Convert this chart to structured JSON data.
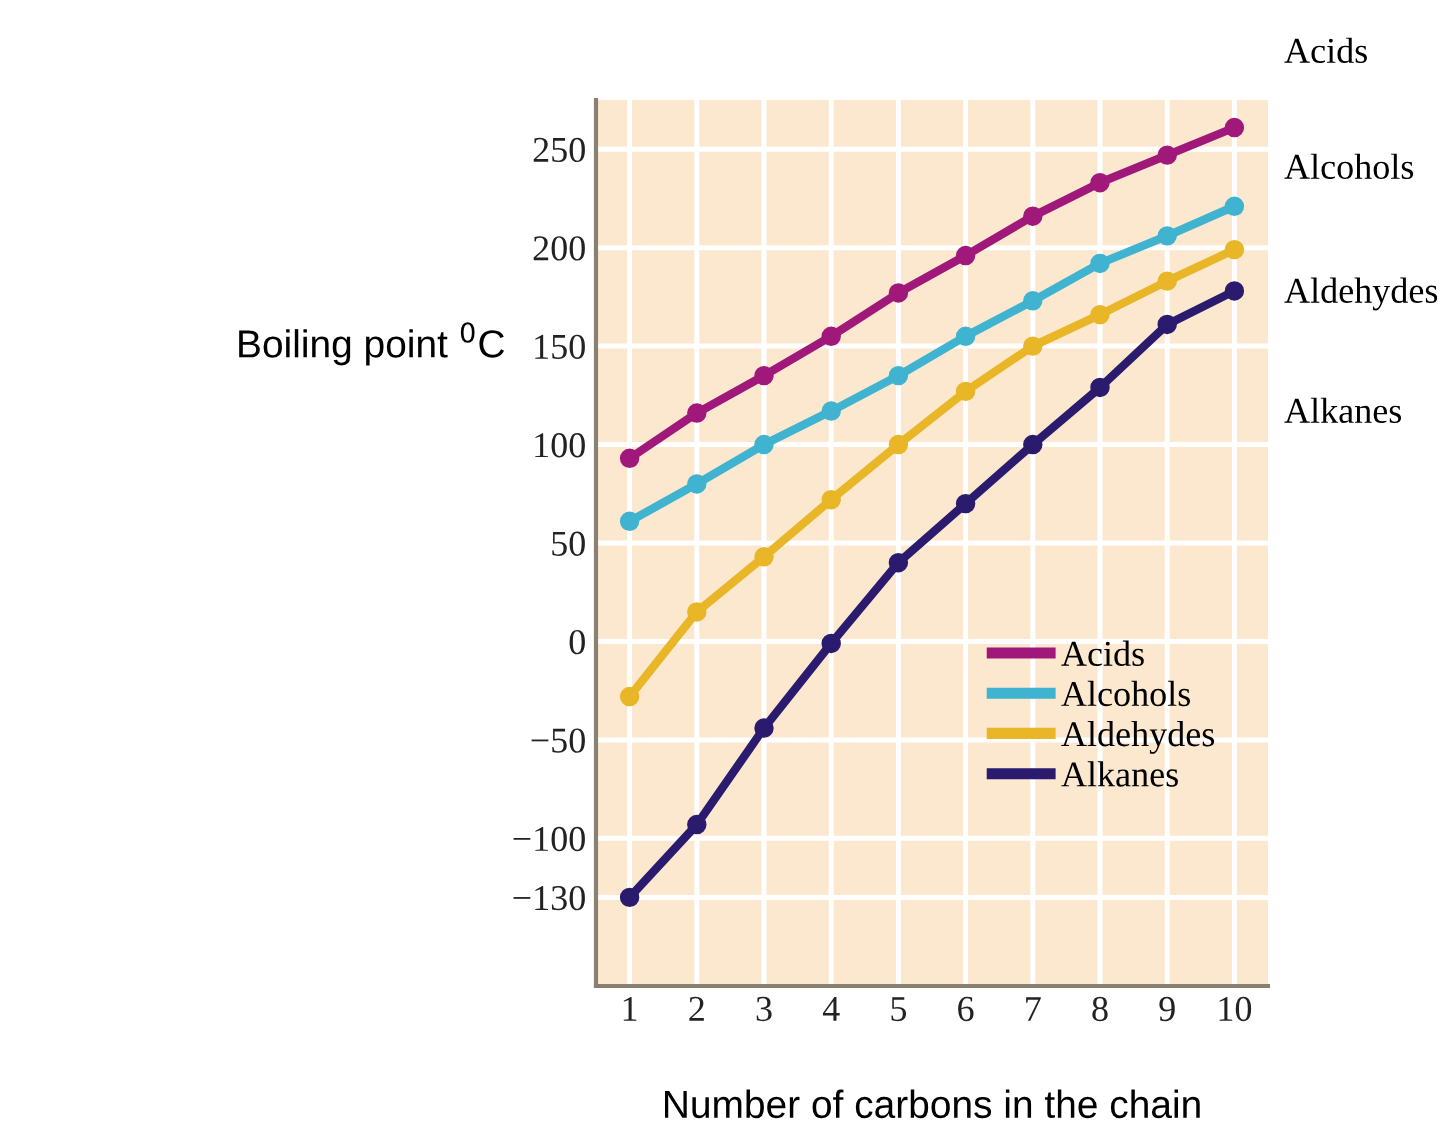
{
  "chart_data": {
    "type": "line",
    "xlabel": "Number of carbons in the chain",
    "ylabel": "Boiling point $^{0}$C",
    "x": [
      1,
      2,
      3,
      4,
      5,
      6,
      7,
      8,
      9,
      10
    ],
    "series": [
      {
        "name": "Acids",
        "color": "#a0197a",
        "values": [
          93,
          116,
          135,
          155,
          177,
          196,
          216,
          233,
          247,
          261
        ]
      },
      {
        "name": "Alcohols",
        "color": "#3fb3cf",
        "values": [
          61,
          80,
          100,
          117,
          135,
          155,
          173,
          192,
          206,
          221
        ]
      },
      {
        "name": "Aldehydes",
        "color": "#e8b627",
        "values": [
          -28,
          15,
          43,
          72,
          100,
          127,
          150,
          166,
          183,
          199
        ]
      },
      {
        "name": "Alkanes",
        "color": "#2a1b6e",
        "values": [
          -130,
          -93,
          -44,
          -1,
          40,
          70,
          100,
          129,
          161,
          178
        ]
      }
    ],
    "xlim": [
      0.5,
      10.5
    ],
    "xticks": [
      1,
      2,
      3,
      4,
      5,
      6,
      7,
      8,
      9,
      10
    ],
    "ylim": [
      -175,
      275
    ],
    "yticks": [
      250,
      200,
      150,
      100,
      50,
      0,
      {
        "value": -50,
        "label": "−50"
      },
      {
        "value": -100,
        "label": "−100"
      },
      {
        "value": -130,
        "label": "−130"
      }
    ],
    "grid": true,
    "legend": "bottom right",
    "marker": "circle",
    "line_style": "solid",
    "annotations": [
      "Acids",
      "Alcohols",
      "Aldehydes",
      "Alkanes"
    ]
  }
}
